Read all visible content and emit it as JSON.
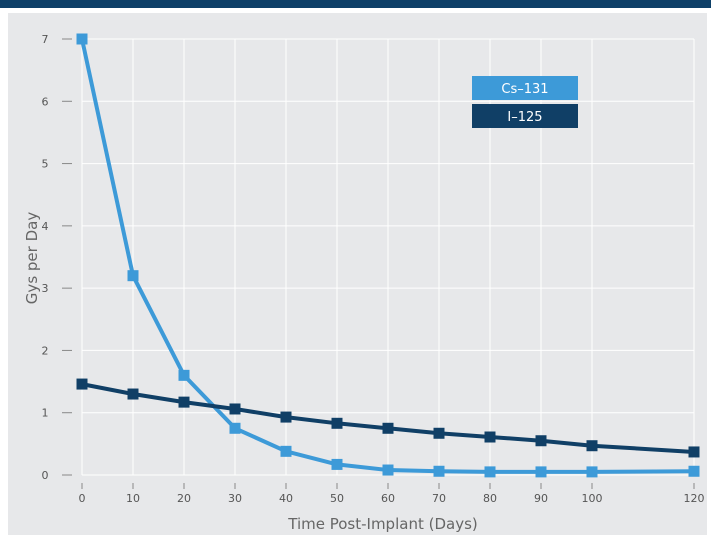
{
  "colors": {
    "top_bar": "#0e4068",
    "plot_bg": "#e7e8ea",
    "grid": "#ffffff",
    "axis": "#888888"
  },
  "chart_data": {
    "type": "line",
    "title": "",
    "xlabel": "Time Post-Implant (Days)",
    "ylabel": "Gys per Day",
    "x": [
      0,
      10,
      20,
      30,
      40,
      50,
      60,
      70,
      80,
      90,
      100,
      120
    ],
    "x_ticks": [
      0,
      10,
      20,
      30,
      40,
      50,
      60,
      70,
      80,
      90,
      100,
      120
    ],
    "y_ticks": [
      0,
      1,
      2,
      3,
      4,
      5,
      6,
      7
    ],
    "xlim": [
      0,
      120
    ],
    "ylim": [
      0,
      7
    ],
    "grid": true,
    "legend_position": "top-right",
    "series": [
      {
        "name": "Cs–131",
        "color": "#3d9ad8",
        "values": [
          7.0,
          3.2,
          1.6,
          0.75,
          0.38,
          0.17,
          0.08,
          0.06,
          0.05,
          0.05,
          0.05,
          0.06
        ]
      },
      {
        "name": "I–125",
        "color": "#103f66",
        "values": [
          1.46,
          1.3,
          1.17,
          1.06,
          0.93,
          0.83,
          0.75,
          0.67,
          0.61,
          0.55,
          0.47,
          0.37
        ]
      }
    ]
  }
}
